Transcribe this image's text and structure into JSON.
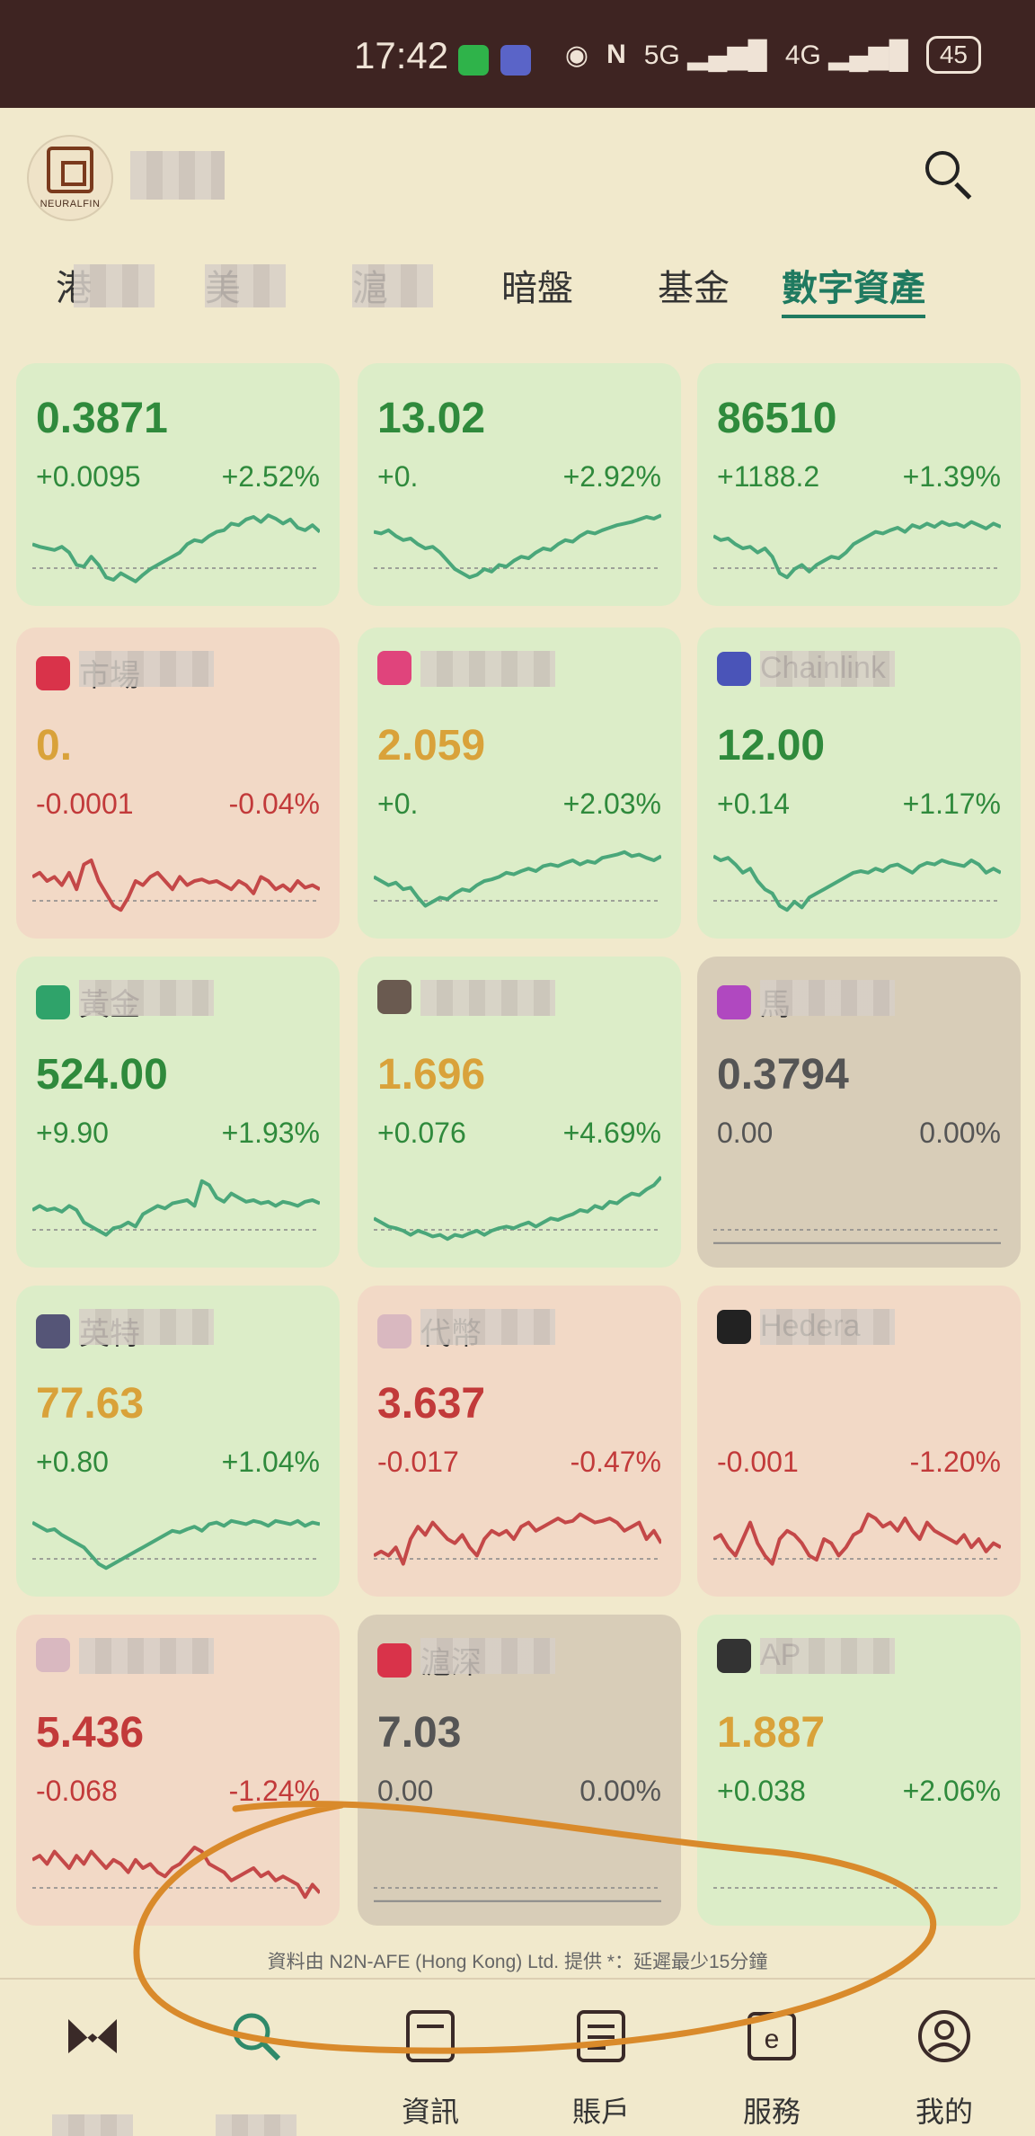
{
  "status": {
    "time": "17:42",
    "network_5g": "5G",
    "network_4g": "4G",
    "battery": "45",
    "colors": {
      "wechat": "#2fb34a",
      "app": "#5a64c8"
    }
  },
  "header": {
    "logo_text": "NEURALFIN",
    "search_icon": "search-icon"
  },
  "tabs": [
    {
      "label": "港",
      "active": false
    },
    {
      "label": "美",
      "active": false
    },
    {
      "label": "滬",
      "active": false
    },
    {
      "label": "暗盤",
      "active": false
    },
    {
      "label": "基金",
      "active": false
    },
    {
      "label": "數字資產",
      "active": true
    }
  ],
  "cards": [
    {
      "name": "",
      "price": "0.3871",
      "change": "+0.0095",
      "pct": "+2.52%",
      "trend": "up",
      "price_color": "#2f8a3c",
      "series": [
        0.55,
        0.52,
        0.5,
        0.48,
        0.52,
        0.45,
        0.3,
        0.28,
        0.4,
        0.3,
        0.15,
        0.12,
        0.2,
        0.15,
        0.1,
        0.18,
        0.25,
        0.3,
        0.35,
        0.4,
        0.45,
        0.55,
        0.6,
        0.58,
        0.65,
        0.7,
        0.72,
        0.8,
        0.78,
        0.85,
        0.88,
        0.82,
        0.9,
        0.86,
        0.8,
        0.85,
        0.75,
        0.72,
        0.78,
        0.7
      ]
    },
    {
      "name": "",
      "price": "13.02",
      "change": "+0.",
      "pct": "+2.92%",
      "trend": "up",
      "price_color": "#2f8a3c",
      "series": [
        0.7,
        0.68,
        0.72,
        0.65,
        0.6,
        0.62,
        0.55,
        0.5,
        0.52,
        0.45,
        0.35,
        0.25,
        0.2,
        0.15,
        0.18,
        0.25,
        0.22,
        0.3,
        0.28,
        0.35,
        0.4,
        0.38,
        0.45,
        0.5,
        0.48,
        0.55,
        0.6,
        0.58,
        0.65,
        0.7,
        0.68,
        0.72,
        0.75,
        0.78,
        0.8,
        0.82,
        0.85,
        0.88,
        0.86,
        0.9
      ]
    },
    {
      "name": "",
      "price": "86510",
      "change": "+1188.2",
      "pct": "+1.39%",
      "trend": "up",
      "price_color": "#2f8a3c",
      "series": [
        0.65,
        0.6,
        0.62,
        0.55,
        0.5,
        0.52,
        0.45,
        0.5,
        0.4,
        0.2,
        0.15,
        0.25,
        0.3,
        0.22,
        0.3,
        0.35,
        0.4,
        0.38,
        0.45,
        0.55,
        0.6,
        0.65,
        0.7,
        0.68,
        0.72,
        0.75,
        0.7,
        0.78,
        0.75,
        0.8,
        0.76,
        0.82,
        0.78,
        0.8,
        0.76,
        0.82,
        0.78,
        0.74,
        0.8,
        0.76
      ]
    },
    {
      "name": "市場",
      "price": "0.",
      "change": "-0.0001",
      "pct": "-0.04%",
      "trend": "down",
      "price_color": "#d9a23a",
      "icon_color": "#d9334a",
      "series": [
        0.55,
        0.6,
        0.5,
        0.55,
        0.45,
        0.6,
        0.4,
        0.7,
        0.75,
        0.5,
        0.35,
        0.2,
        0.15,
        0.3,
        0.5,
        0.45,
        0.55,
        0.6,
        0.5,
        0.4,
        0.55,
        0.45,
        0.5,
        0.52,
        0.48,
        0.5,
        0.45,
        0.4,
        0.5,
        0.45,
        0.35,
        0.55,
        0.5,
        0.4,
        0.45,
        0.38,
        0.5,
        0.42,
        0.45,
        0.4
      ]
    },
    {
      "name": "",
      "price": "2.059",
      "change": "+0.",
      "pct": "+2.03%",
      "trend": "up",
      "price_color": "#d9a23a",
      "icon_color": "#e0447c",
      "series": [
        0.55,
        0.5,
        0.45,
        0.48,
        0.4,
        0.42,
        0.3,
        0.2,
        0.25,
        0.3,
        0.28,
        0.35,
        0.4,
        0.38,
        0.45,
        0.5,
        0.52,
        0.55,
        0.6,
        0.58,
        0.62,
        0.65,
        0.62,
        0.68,
        0.7,
        0.68,
        0.72,
        0.75,
        0.7,
        0.74,
        0.72,
        0.78,
        0.8,
        0.82,
        0.85,
        0.8,
        0.82,
        0.78,
        0.75,
        0.8
      ]
    },
    {
      "name": "Chainlink",
      "price": "12.00",
      "change": "+0.14",
      "pct": "+1.17%",
      "trend": "up",
      "price_color": "#2f8a3c",
      "icon_color": "#4a54b8",
      "series": [
        0.8,
        0.75,
        0.78,
        0.7,
        0.6,
        0.65,
        0.5,
        0.4,
        0.35,
        0.2,
        0.15,
        0.25,
        0.18,
        0.3,
        0.35,
        0.4,
        0.45,
        0.5,
        0.55,
        0.6,
        0.62,
        0.6,
        0.65,
        0.62,
        0.68,
        0.7,
        0.65,
        0.6,
        0.68,
        0.72,
        0.7,
        0.75,
        0.72,
        0.7,
        0.68,
        0.75,
        0.7,
        0.6,
        0.65,
        0.6
      ]
    },
    {
      "name": "黃金",
      "price": "524.00",
      "change": "+9.90",
      "pct": "+1.93%",
      "trend": "up",
      "price_color": "#2f8a3c",
      "icon_color": "#2fa36a",
      "series": [
        0.5,
        0.55,
        0.5,
        0.52,
        0.48,
        0.55,
        0.5,
        0.35,
        0.3,
        0.25,
        0.2,
        0.28,
        0.3,
        0.35,
        0.3,
        0.45,
        0.5,
        0.55,
        0.52,
        0.58,
        0.6,
        0.62,
        0.55,
        0.85,
        0.8,
        0.65,
        0.6,
        0.7,
        0.65,
        0.6,
        0.62,
        0.58,
        0.6,
        0.55,
        0.6,
        0.58,
        0.55,
        0.6,
        0.62,
        0.58
      ]
    },
    {
      "name": "",
      "price": "1.696",
      "change": "+0.076",
      "pct": "+4.69%",
      "trend": "up",
      "price_color": "#d9a23a",
      "icon_color": "#6a5a50",
      "series": [
        0.4,
        0.35,
        0.3,
        0.28,
        0.25,
        0.2,
        0.25,
        0.22,
        0.18,
        0.2,
        0.15,
        0.2,
        0.18,
        0.22,
        0.25,
        0.2,
        0.25,
        0.28,
        0.3,
        0.28,
        0.32,
        0.35,
        0.3,
        0.35,
        0.4,
        0.38,
        0.42,
        0.45,
        0.5,
        0.48,
        0.55,
        0.52,
        0.6,
        0.58,
        0.65,
        0.7,
        0.68,
        0.75,
        0.8,
        0.9
      ]
    },
    {
      "name": "馬",
      "price": "0.3794",
      "change": "0.00",
      "pct": "0.00%",
      "trend": "flat",
      "price_color": "#555555",
      "icon_color": "#b048c0",
      "series": [
        0.1,
        0.1
      ]
    },
    {
      "name": "英特",
      "price": "77.63",
      "change": "+0.80",
      "pct": "+1.04%",
      "trend": "up",
      "price_color": "#d9a23a",
      "icon_color": "#555577",
      "series": [
        0.7,
        0.65,
        0.6,
        0.62,
        0.55,
        0.5,
        0.45,
        0.4,
        0.3,
        0.2,
        0.15,
        0.2,
        0.25,
        0.3,
        0.35,
        0.4,
        0.45,
        0.5,
        0.55,
        0.6,
        0.58,
        0.62,
        0.65,
        0.6,
        0.68,
        0.7,
        0.66,
        0.72,
        0.7,
        0.68,
        0.72,
        0.7,
        0.66,
        0.72,
        0.7,
        0.68,
        0.72,
        0.66,
        0.7,
        0.68
      ]
    },
    {
      "name": "代幣",
      "price": "3.637",
      "change": "-0.017",
      "pct": "-0.47%",
      "trend": "down",
      "price_color": "#c23a3a",
      "icon_color": "#d9b8c0",
      "series": [
        0.3,
        0.35,
        0.3,
        0.4,
        0.2,
        0.5,
        0.65,
        0.55,
        0.7,
        0.6,
        0.5,
        0.45,
        0.55,
        0.4,
        0.3,
        0.5,
        0.6,
        0.55,
        0.6,
        0.5,
        0.65,
        0.7,
        0.6,
        0.65,
        0.7,
        0.75,
        0.7,
        0.72,
        0.8,
        0.75,
        0.7,
        0.72,
        0.75,
        0.7,
        0.6,
        0.65,
        0.7,
        0.5,
        0.6,
        0.45
      ]
    },
    {
      "name": "Hedera",
      "price": "",
      "change": "-0.001",
      "pct": "-1.20%",
      "trend": "down",
      "price_color": "#c23a3a",
      "icon_color": "#222222",
      "series": [
        0.5,
        0.55,
        0.4,
        0.3,
        0.5,
        0.7,
        0.45,
        0.3,
        0.2,
        0.5,
        0.6,
        0.55,
        0.45,
        0.3,
        0.25,
        0.5,
        0.45,
        0.3,
        0.4,
        0.55,
        0.6,
        0.8,
        0.75,
        0.65,
        0.7,
        0.6,
        0.75,
        0.6,
        0.5,
        0.7,
        0.6,
        0.55,
        0.5,
        0.45,
        0.55,
        0.4,
        0.5,
        0.35,
        0.45,
        0.4
      ]
    },
    {
      "name": "",
      "price": "5.436",
      "change": "-0.068",
      "pct": "-1.24%",
      "trend": "down",
      "price_color": "#c23a3a",
      "icon_color": "#d9b8c0",
      "series": [
        0.6,
        0.65,
        0.55,
        0.7,
        0.6,
        0.5,
        0.65,
        0.55,
        0.7,
        0.6,
        0.5,
        0.6,
        0.55,
        0.45,
        0.6,
        0.5,
        0.55,
        0.45,
        0.4,
        0.5,
        0.55,
        0.65,
        0.75,
        0.7,
        0.55,
        0.5,
        0.45,
        0.35,
        0.4,
        0.45,
        0.5,
        0.4,
        0.45,
        0.35,
        0.4,
        0.35,
        0.3,
        0.15,
        0.3,
        0.2
      ]
    },
    {
      "name": "滬深",
      "price": "7.03",
      "change": "0.00",
      "pct": "0.00%",
      "trend": "flat",
      "price_color": "#555555",
      "icon_color": "#d9334a",
      "series": [
        0.1,
        0.1
      ]
    },
    {
      "name": "AP",
      "price": "1.887",
      "change": "+0.038",
      "pct": "+2.06%",
      "trend": "up",
      "price_color": "#d9a23a",
      "icon_color": "#333333",
      "series": []
    }
  ],
  "footer_note": "資料由 N2N-AFE (Hong Kong) Ltd. 提供 *：延遲最少15分鐘",
  "nav": [
    {
      "label": "",
      "icon": "home-icon"
    },
    {
      "label": "",
      "icon": "market-icon"
    },
    {
      "label": "資訊",
      "icon": "news-icon"
    },
    {
      "label": "賬戶",
      "icon": "account-icon"
    },
    {
      "label": "服務",
      "icon": "service-icon"
    },
    {
      "label": "我的",
      "icon": "profile-icon"
    }
  ],
  "colors": {
    "up": "#4aa77a",
    "down": "#c44848",
    "accent": "#1f7a60"
  }
}
